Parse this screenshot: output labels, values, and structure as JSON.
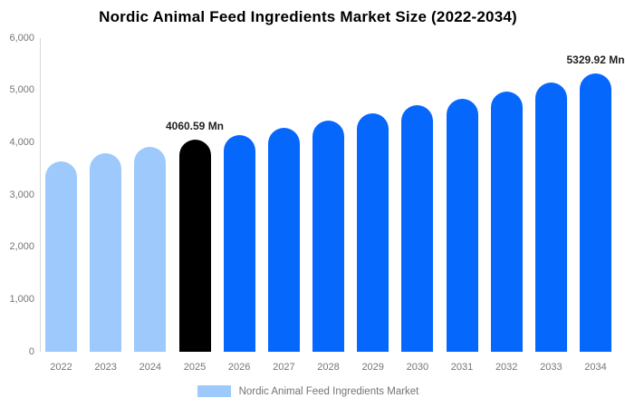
{
  "title": "Nordic Animal Feed Ingredients Market Size (2022-2034)",
  "legend": {
    "label": "Nordic Animal Feed Ingredients Market"
  },
  "chart_data": {
    "type": "bar",
    "title": "Nordic Animal Feed Ingredients Market Size (2022-2034)",
    "unit": "Mn",
    "categories": [
      "2022",
      "2023",
      "2024",
      "2025",
      "2026",
      "2027",
      "2028",
      "2029",
      "2030",
      "2031",
      "2032",
      "2033",
      "2034"
    ],
    "values": [
      3650,
      3790,
      3920,
      4060.59,
      4150,
      4290,
      4420,
      4560,
      4720,
      4830,
      4980,
      5150,
      5329.92
    ],
    "highlight_year": "2025",
    "historical_years": [
      "2022",
      "2023",
      "2024"
    ],
    "annotations": [
      {
        "year": "2025",
        "text": "4060.59 Mn"
      },
      {
        "year": "2034",
        "text": "5329.92 Mn"
      }
    ],
    "ylim": [
      0,
      6000
    ],
    "ytick_labels": [
      "0",
      "1,000",
      "2,000",
      "3,000",
      "4,000",
      "5,000",
      "6,000"
    ],
    "xlabel": "",
    "ylabel": "",
    "grid": false,
    "legend_position": "bottom",
    "legend_entries": [
      "Nordic Animal Feed Ingredients Market"
    ],
    "colors": {
      "historical": "#9dc9fc",
      "highlight": "#000000",
      "forecast": "#0667fd",
      "axis_line": "#d9d9d9",
      "tick_text": "#757575",
      "annotation_text": "#222222"
    }
  }
}
